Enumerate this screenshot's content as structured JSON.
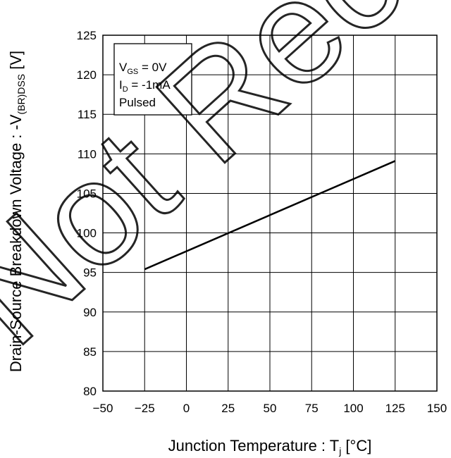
{
  "chart_data": {
    "type": "line",
    "xlabel": "Junction Temperature : T",
    "xlabel_sub": "j",
    "xlabel_unit": " [°C]",
    "ylabel_prefix": "Drain-Source Breakdown Voltage : -V",
    "ylabel_sub": "(BR)DSS",
    "ylabel_unit": " [V]",
    "xlim": [
      -50,
      150
    ],
    "ylim": [
      80,
      125
    ],
    "x_ticks": [
      -50,
      -25,
      0,
      25,
      50,
      75,
      100,
      125,
      150
    ],
    "x_tick_labels": [
      "−50",
      "−25",
      "0",
      "25",
      "50",
      "75",
      "100",
      "125",
      "150"
    ],
    "y_ticks": [
      80,
      85,
      90,
      95,
      100,
      105,
      110,
      115,
      120,
      125
    ],
    "y_tick_labels": [
      "80",
      "85",
      "90",
      "95",
      "100",
      "105",
      "110",
      "115",
      "120",
      "125"
    ],
    "grid": true,
    "legend_position": "top-left",
    "series": [
      {
        "x": [
          -25,
          125
        ],
        "y": [
          95.4,
          109.1
        ]
      }
    ],
    "conditions": {
      "line1_main": "V",
      "line1_sub": "GS",
      "line1_rest": " = 0V",
      "line2_main": "I",
      "line2_sub": "D",
      "line2_rest": " = -1mA",
      "line3": "Pulsed"
    },
    "watermark": "Not Recommended for New Designs"
  }
}
